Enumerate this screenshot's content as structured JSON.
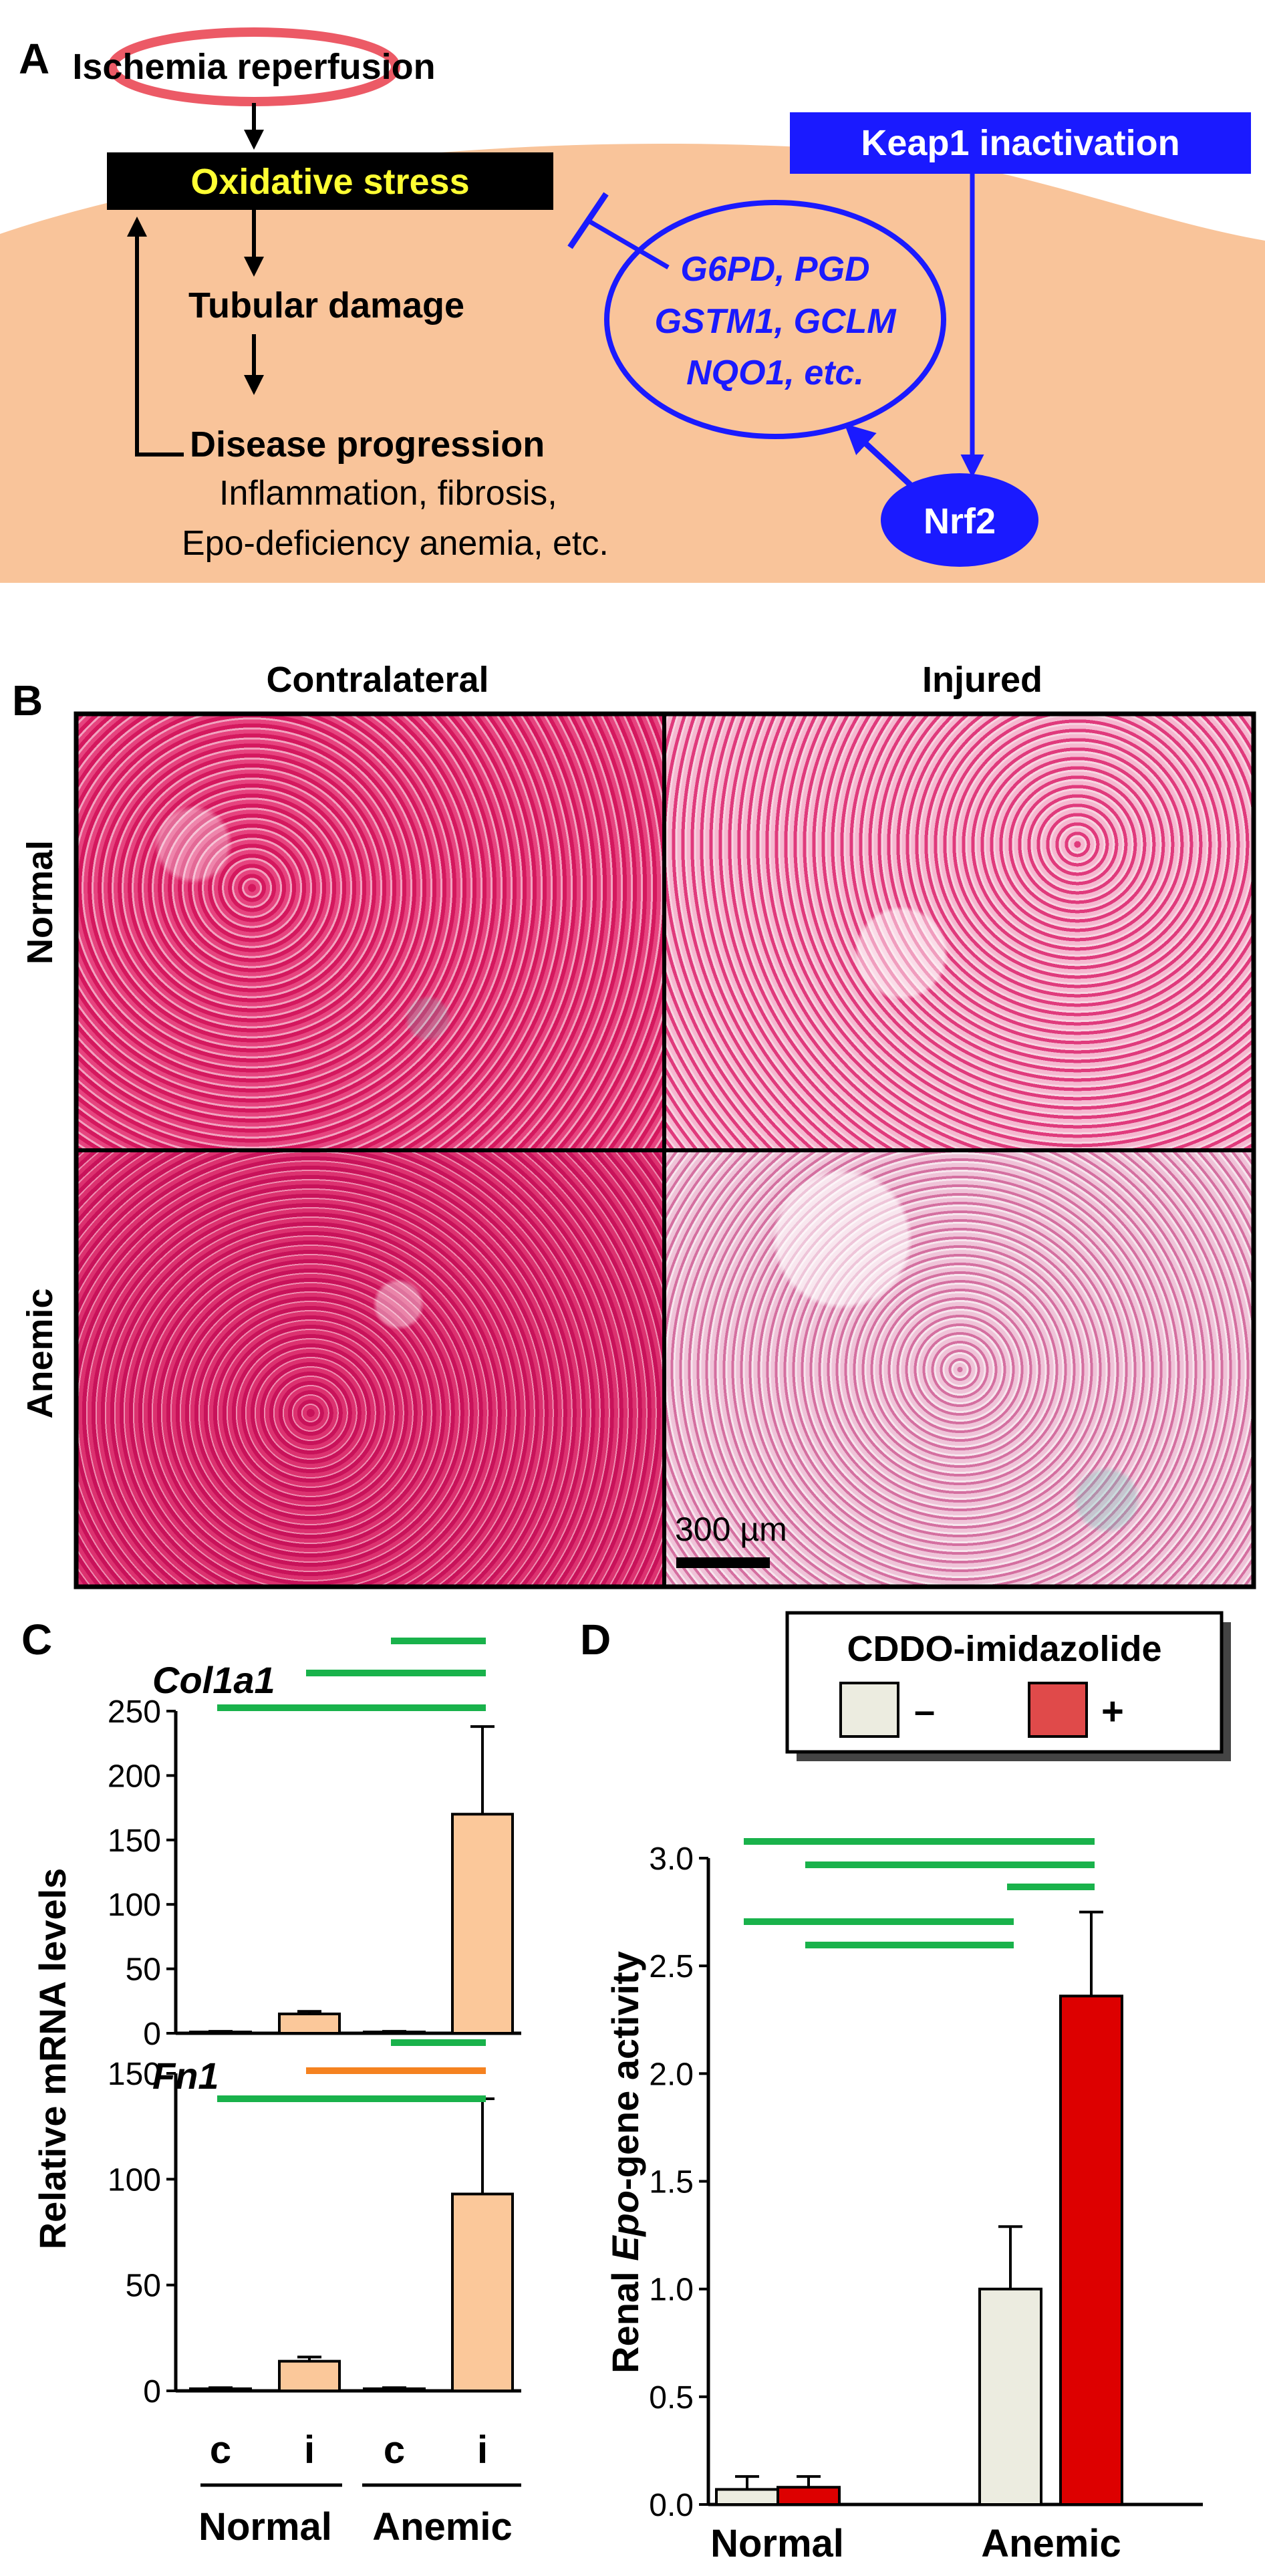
{
  "panel_a": {
    "label": "A",
    "ischemia": "Ischemia reperfusion",
    "oxidative": "Oxidative stress",
    "tubular": "Tubular damage",
    "disease": "Disease progression",
    "consequence_1": "Inflammation, fibrosis,",
    "consequence_2": "Epo-deficiency anemia, etc.",
    "keap1": "Keap1 inactivation",
    "genes_1": "G6PD, PGD",
    "genes_2": "GSTM1, GCLM",
    "genes_3": "NQO1, etc.",
    "nrf2": "Nrf2"
  },
  "panel_b": {
    "label": "B",
    "col_contralateral": "Contralateral",
    "col_injured": "Injured",
    "row_normal": "Normal",
    "row_anemic": "Anemic",
    "scale_bar": "300 µm"
  },
  "panel_c": {
    "label": "C",
    "ylabel": "Relative mRNA levels",
    "tick_labels": [
      "c",
      "i",
      "c",
      "i"
    ],
    "group_labels": [
      "Normal",
      "Anemic"
    ]
  },
  "panel_d": {
    "label": "D",
    "legend_title": "CDDO-imidazolide",
    "legend_minus": "–",
    "legend_plus": "+",
    "ylabel_pre": "Renal ",
    "ylabel_italic": "Epo",
    "ylabel_post": "-gene activity"
  },
  "colors": {
    "peach": "#f9c49a",
    "ischemia_ring": "#ec5a66",
    "blue": "#1a1aff",
    "yellow": "#ffff33",
    "sig_green": "#19b24b",
    "sig_orange": "#f58220",
    "bar_peach": "#fbc89a",
    "bar_grey": "#ecece0",
    "bar_red": "#dd0000",
    "legend_red": "#e04a4a"
  },
  "chart_data": [
    {
      "id": "col1a1",
      "type": "bar",
      "title": "Col1a1",
      "ylabel": "Relative mRNA levels",
      "categories": [
        "c",
        "i",
        "c",
        "i"
      ],
      "groups": [
        "Normal",
        "Anemic"
      ],
      "values": [
        1,
        15,
        1,
        170
      ],
      "errors": [
        0.5,
        2,
        0.5,
        68
      ],
      "ylim": [
        0,
        250
      ],
      "yticks": [
        0,
        50,
        100,
        150,
        200,
        250
      ],
      "significance": [
        {
          "from": 2,
          "to": 3,
          "color": "green"
        },
        {
          "from": 1,
          "to": 3,
          "color": "green"
        },
        {
          "from": 0,
          "to": 3,
          "color": "green"
        }
      ]
    },
    {
      "id": "fn1",
      "type": "bar",
      "title": "Fn1",
      "ylabel": "Relative mRNA levels",
      "categories": [
        "c",
        "i",
        "c",
        "i"
      ],
      "groups": [
        "Normal",
        "Anemic"
      ],
      "values": [
        1,
        14,
        1,
        93
      ],
      "errors": [
        0.5,
        2,
        0.5,
        45
      ],
      "ylim": [
        0,
        150
      ],
      "yticks": [
        0,
        50,
        100,
        150
      ],
      "significance": [
        {
          "from": 2,
          "to": 3,
          "color": "green"
        },
        {
          "from": 1,
          "to": 3,
          "color": "orange"
        },
        {
          "from": 0,
          "to": 3,
          "color": "green"
        }
      ]
    },
    {
      "id": "epo",
      "type": "bar",
      "ylabel": "Renal Epo-gene activity",
      "groups": [
        "Normal",
        "Anemic"
      ],
      "series": [
        {
          "name": "–",
          "values": [
            0.07,
            1.0
          ],
          "errors": [
            0.06,
            0.29
          ]
        },
        {
          "name": "+",
          "values": [
            0.08,
            2.36
          ],
          "errors": [
            0.05,
            0.39
          ]
        }
      ],
      "ylim": [
        0,
        3.0
      ],
      "yticks": [
        "0.0",
        "0.5",
        "1.0",
        "1.5",
        "2.0",
        "2.5",
        "3.0"
      ],
      "legend": "top",
      "significance": [
        {
          "from": 0,
          "to": 3,
          "color": "green"
        },
        {
          "from": 1,
          "to": 3,
          "color": "green"
        },
        {
          "from": 2,
          "to": 3,
          "color": "green"
        },
        {
          "from": 0,
          "to": 2,
          "color": "green"
        },
        {
          "from": 1,
          "to": 2,
          "color": "green"
        }
      ]
    }
  ]
}
